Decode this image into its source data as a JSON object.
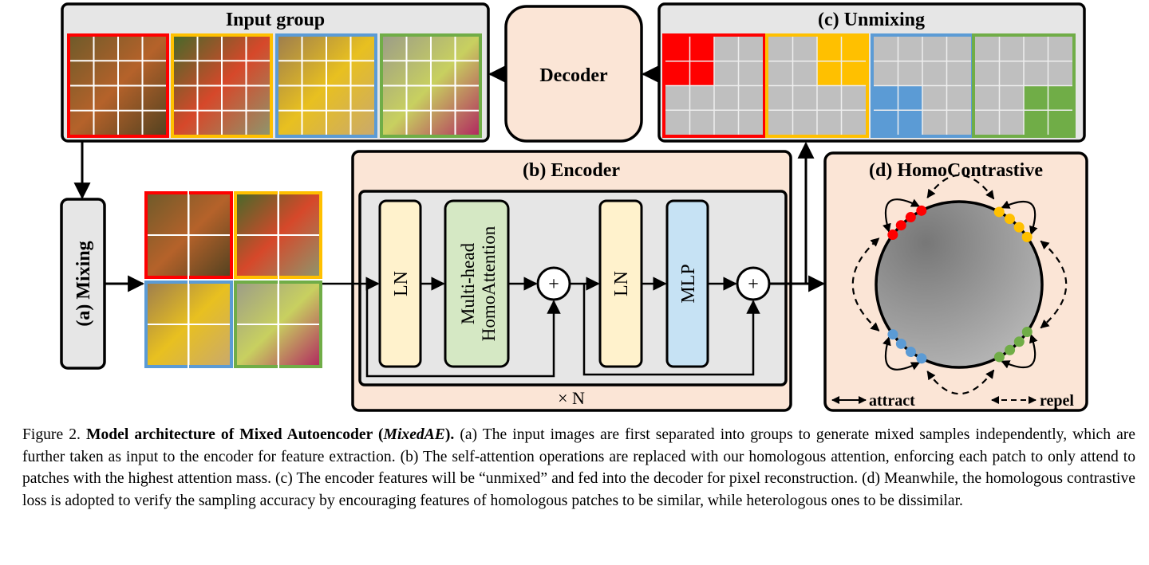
{
  "figure": {
    "input_group": {
      "title": "Input group"
    },
    "decoder": {
      "label": "Decoder"
    },
    "unmixing": {
      "title": "(c) Unmixing"
    },
    "mixing": {
      "label": "(a) Mixing"
    },
    "encoder": {
      "title": "(b) Encoder",
      "blocks": [
        "LN",
        "Multi-head",
        "HomoAttention",
        "LN",
        "MLP"
      ],
      "plus": "+",
      "repeat": "× N"
    },
    "homocontrastive": {
      "title": "(d) HomoContrastive",
      "attract": "attract",
      "repel": "repel"
    },
    "group_colors": [
      "#ff0000",
      "#ffc000",
      "#5b9bd5",
      "#70ad47"
    ],
    "block_colors": {
      "ln": "#fff2cc",
      "attention": "#d5e8c4",
      "mlp": "#c6e2f4",
      "panel": "#fbe5d6",
      "box": "#e6e6e6"
    }
  },
  "caption": {
    "label": "Figure 2. ",
    "bold": "Model architecture of Mixed Autoencoder (",
    "bold_italic": "MixedAE",
    "bold_end": ").",
    "text": " (a) The input images are first separated into groups to generate mixed samples independently, which are further taken as input to the encoder for feature extraction. (b) The self-attention operations are replaced with our homologous attention, enforcing each patch to only attend to patches with the highest attention mass. (c) The encoder features will be “unmixed” and fed into the decoder for pixel reconstruction. (d) Meanwhile, the homologous contrastive loss is adopted to verify the sampling accuracy by encouraging features of homologous patches to be similar, while heterologous ones to be dissimilar."
  }
}
